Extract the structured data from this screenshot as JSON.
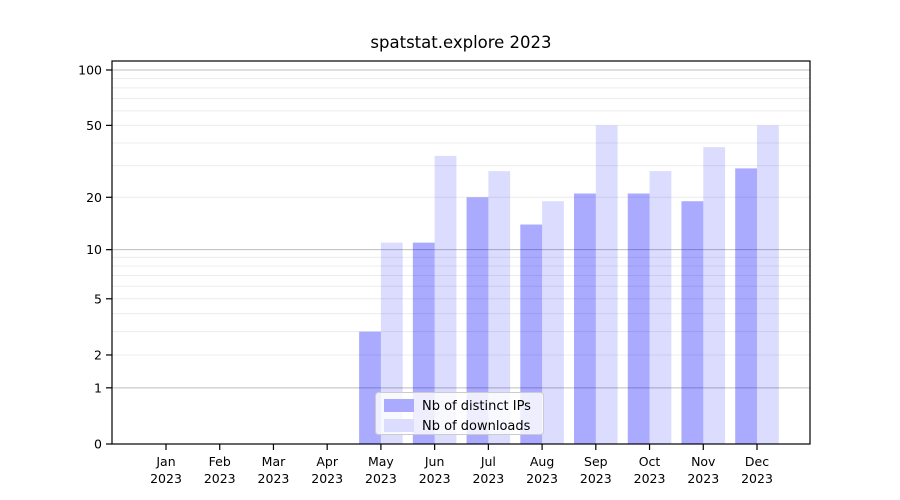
{
  "chart_data": {
    "type": "bar",
    "title": "spatstat.explore 2023",
    "x_categories": [
      "Jan",
      "Feb",
      "Mar",
      "Apr",
      "May",
      "Jun",
      "Jul",
      "Aug",
      "Sep",
      "Oct",
      "Nov",
      "Dec"
    ],
    "x_year": "2023",
    "series": [
      {
        "name": "Nb of distinct IPs",
        "color": "#aaaaff",
        "values": [
          0,
          0,
          0,
          0,
          3,
          11,
          20,
          14,
          21,
          21,
          19,
          29
        ]
      },
      {
        "name": "Nb of downloads",
        "color": "#dcdcff",
        "values": [
          0,
          0,
          0,
          0,
          11,
          34,
          28,
          19,
          50,
          28,
          38,
          50
        ]
      }
    ],
    "y_scale": "log10(1+x)",
    "y_ticks": [
      0,
      1,
      2,
      5,
      10,
      20,
      50,
      100
    ],
    "y_grid_minor": [
      2,
      3,
      4,
      5,
      6,
      7,
      8,
      9,
      20,
      30,
      40,
      50,
      60,
      70,
      80,
      90
    ],
    "y_grid_major": [
      1,
      10,
      100
    ],
    "ylim": [
      0,
      113
    ],
    "grid_on": true,
    "legend_position": "bottom-center",
    "colors": {
      "grid_minor": "#ececec",
      "grid_major": "#bdbdbd",
      "axis": "#000000",
      "background": "#ffffff",
      "legend_border": "#cccccc"
    }
  }
}
